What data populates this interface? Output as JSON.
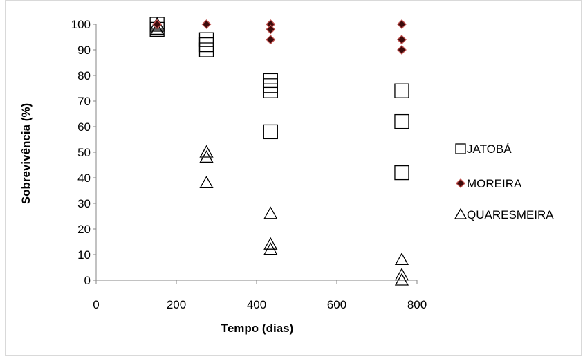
{
  "chart_data": {
    "type": "scatter",
    "title": "",
    "xlabel": "Tempo (dias)",
    "ylabel": "Sobrevivência (%)",
    "xlim": [
      0,
      800
    ],
    "ylim": [
      0,
      100
    ],
    "x_ticks": [
      0,
      200,
      400,
      600,
      800
    ],
    "y_ticks": [
      0,
      10,
      20,
      30,
      40,
      50,
      60,
      70,
      80,
      90,
      100
    ],
    "grid": false,
    "legend_position": "right",
    "series": [
      {
        "name": "JATOBÁ",
        "marker": "square-open",
        "color": "#000000",
        "points": [
          {
            "x": 152,
            "y": 100
          },
          {
            "x": 152,
            "y": 98
          },
          {
            "x": 275,
            "y": 94
          },
          {
            "x": 275,
            "y": 92
          },
          {
            "x": 275,
            "y": 90
          },
          {
            "x": 435,
            "y": 78
          },
          {
            "x": 435,
            "y": 76
          },
          {
            "x": 435,
            "y": 74
          },
          {
            "x": 435,
            "y": 58
          },
          {
            "x": 762,
            "y": 74
          },
          {
            "x": 762,
            "y": 62
          },
          {
            "x": 762,
            "y": 42
          }
        ]
      },
      {
        "name": "MOREIRA",
        "marker": "diamond-filled",
        "color": "#3d0a0a",
        "edge_color": "#c0504d",
        "points": [
          {
            "x": 152,
            "y": 100
          },
          {
            "x": 152,
            "y": 100
          },
          {
            "x": 152,
            "y": 100
          },
          {
            "x": 275,
            "y": 100
          },
          {
            "x": 435,
            "y": 100
          },
          {
            "x": 435,
            "y": 98
          },
          {
            "x": 435,
            "y": 94
          },
          {
            "x": 762,
            "y": 100
          },
          {
            "x": 762,
            "y": 94
          },
          {
            "x": 762,
            "y": 90
          }
        ]
      },
      {
        "name": "QUARESMEIRA",
        "marker": "triangle-open",
        "color": "#000000",
        "points": [
          {
            "x": 152,
            "y": 100
          },
          {
            "x": 152,
            "y": 98
          },
          {
            "x": 275,
            "y": 50
          },
          {
            "x": 275,
            "y": 48
          },
          {
            "x": 275,
            "y": 38
          },
          {
            "x": 435,
            "y": 26
          },
          {
            "x": 435,
            "y": 14
          },
          {
            "x": 435,
            "y": 12
          },
          {
            "x": 762,
            "y": 8
          },
          {
            "x": 762,
            "y": 2
          },
          {
            "x": 762,
            "y": 0
          }
        ]
      }
    ]
  }
}
